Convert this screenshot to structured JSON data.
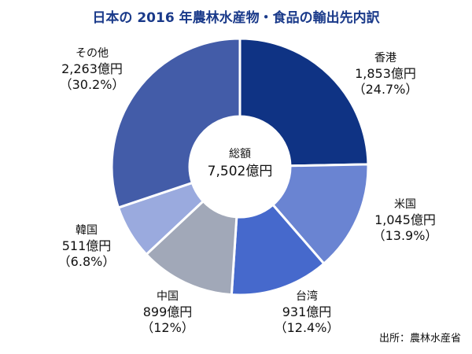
{
  "chart_data": {
    "type": "pie",
    "title": "日本の 2016 年農林水産物・食品の輸出先内訳",
    "donut": true,
    "unit": "億円",
    "slices": [
      {
        "name": "香港",
        "value": 1853,
        "value_label": "1,853億円",
        "percent_label": "（24.7%）",
        "color": "#0f3384"
      },
      {
        "name": "米国",
        "value": 1045,
        "value_label": "1,045億円",
        "percent_label": "（13.9%）",
        "color": "#6a84d2"
      },
      {
        "name": "台湾",
        "value": 931,
        "value_label": "931億円",
        "percent_label": "（12.4%）",
        "color": "#4669cc"
      },
      {
        "name": "中国",
        "value": 899,
        "value_label": "899億円",
        "percent_label": "（12%）",
        "color": "#a1a8b8"
      },
      {
        "name": "韓国",
        "value": 511,
        "value_label": "511億円",
        "percent_label": "（6.8%）",
        "color": "#9aaade"
      },
      {
        "name": "その他",
        "value": 2263,
        "value_label": "2,263億円",
        "percent_label": "（30.2%）",
        "color": "#435ca8"
      }
    ],
    "center": {
      "label": "総額",
      "value": "7,502億円"
    },
    "source": "出所：農林水産省"
  }
}
